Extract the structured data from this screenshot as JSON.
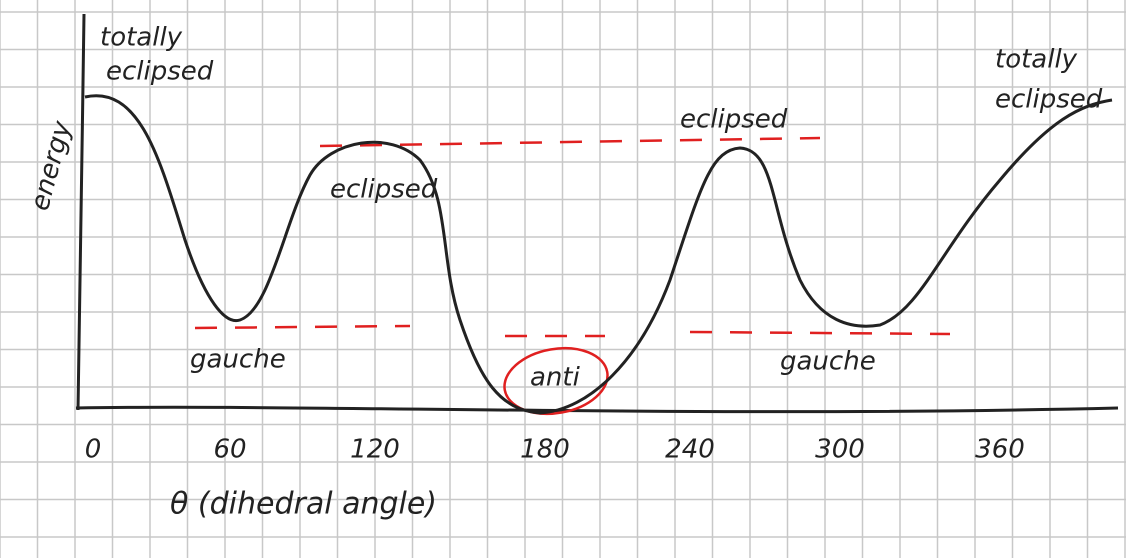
{
  "diagram": {
    "y_axis_label": "energy",
    "x_axis_label": "θ (dihedral angle)",
    "x_tick_labels": [
      "0",
      "60",
      "120",
      "180",
      "240",
      "300",
      "360"
    ],
    "annotations": {
      "start_peak": [
        "totally",
        "eclipsed"
      ],
      "first_valley": "gauche",
      "second_peak": "eclipsed",
      "middle_valley": "anti",
      "third_peak": "eclipsed",
      "second_valley": "gauche",
      "end_peak": [
        "totally",
        "eclipsed"
      ]
    }
  }
}
